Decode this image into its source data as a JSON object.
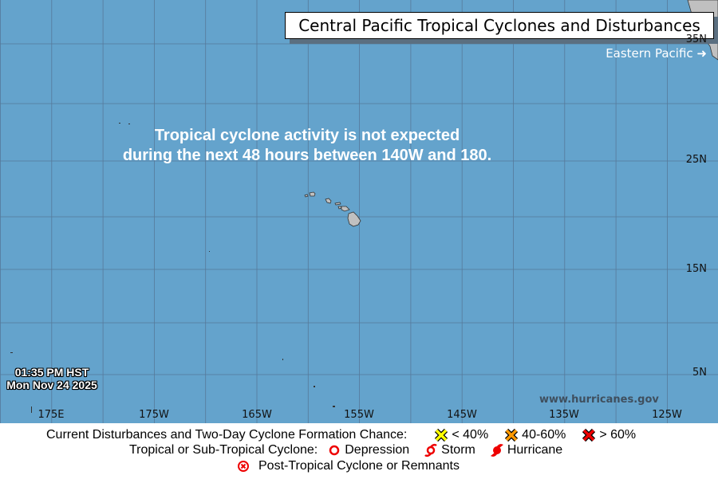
{
  "title": "Central Pacific Tropical Cyclones and Disturbances",
  "eastern_pacific_link": "Eastern Pacific",
  "eastern_pacific_arrow": "arrow-right-icon",
  "message": {
    "line1": "Tropical cyclone activity is not expected",
    "line2": "during the next 48 hours between 140W and 180."
  },
  "timestamp": {
    "time": "01:35 PM HST",
    "date": "Mon Nov 24 2025"
  },
  "website": "www.hurricanes.gov",
  "longitude_labels": [
    "175E",
    "175W",
    "165W",
    "155W",
    "145W",
    "135W",
    "125W"
  ],
  "latitude_labels": [
    "35N",
    "25N",
    "15N",
    "5N"
  ],
  "colors": {
    "ocean": "#64a3cc",
    "land": "#c0c0c0",
    "low": "#ffff00",
    "medium": "#ff9900",
    "high": "#ee0000",
    "cyclone": "#ee0000"
  },
  "legend": {
    "disturbances_label": "Current Disturbances and Two-Day Cyclone Formation Chance:",
    "low": "< 40%",
    "medium": "40-60%",
    "high": "> 60%",
    "cyclone_label": "Tropical or Sub-Tropical Cyclone:",
    "depression": "Depression",
    "storm": "Storm",
    "hurricane": "Hurricane",
    "post_tropical": "Post-Tropical Cyclone or Remnants"
  }
}
